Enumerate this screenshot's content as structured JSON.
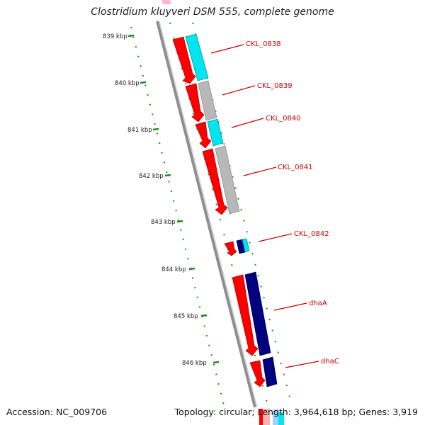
{
  "title": "Clostridium kluyveri DSM 555, complete genome",
  "footer": {
    "accession": "Accession: NC_009706",
    "info": "Topology: circular; Length: 3,964,618 bp; Genes: 3,919"
  },
  "scale": {
    "unit": "kbp",
    "ticks": [
      "839 kbp",
      "840 kbp",
      "841 kbp",
      "842 kbp",
      "843 kbp",
      "844 kbp",
      "845 kbp",
      "846 kbp"
    ],
    "tick_color": "#228822"
  },
  "colors": {
    "cds": "#ff0000",
    "gene_cyan": "#00e5ee",
    "gene_gray": "#b8b8b8",
    "gene_navy": "#000080",
    "label": "#cc0000",
    "backbone": "#888888"
  },
  "genes": [
    {
      "label": "CKL_0838",
      "color": "cyan"
    },
    {
      "label": "CKL_0839",
      "color": "gray"
    },
    {
      "label": "CKL_0840",
      "color": "cyan"
    },
    {
      "label": "CKL_0841",
      "color": "gray"
    },
    {
      "label": "CKL_0842",
      "color": "navy"
    },
    {
      "label": "dhaA",
      "color": "navy"
    },
    {
      "label": "dhaC",
      "color": "navy"
    }
  ]
}
